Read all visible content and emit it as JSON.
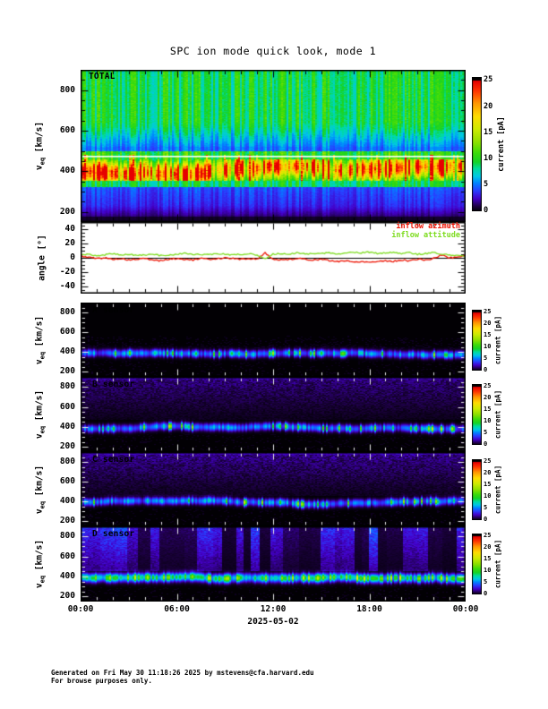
{
  "title": "SPC ion mode quick look, mode 1",
  "footer": {
    "line1": "Generated on Fri May 30 11:18:26 2025 by mstevens@cfa.harvard.edu",
    "line2": "For browse purposes only."
  },
  "x_axis": {
    "tick_labels": [
      "00:00",
      "06:00",
      "12:00",
      "18:00",
      "00:00"
    ],
    "date_label": "2025-05-02"
  },
  "ylabels": {
    "velocity_v": "v",
    "velocity_sub": "eq",
    "velocity_unit": "[km/s]",
    "angle": "angle [°]"
  },
  "colorbar": {
    "label": "current [pA]",
    "ticks": [
      0,
      5,
      10,
      15,
      20,
      25
    ],
    "max_pA": 25
  },
  "panels": {
    "total": {
      "label": "TOTAL",
      "yticks": [
        200,
        400,
        600,
        800
      ]
    },
    "angle": {
      "yticks": [
        -40,
        -20,
        0,
        20,
        40
      ],
      "legend": [
        {
          "label": "inflow azimuth",
          "color": "#ee1100"
        },
        {
          "label": "inflow attitude",
          "color": "#7ddc1e"
        }
      ]
    },
    "sensors": [
      {
        "label": "A sensor",
        "yticks": [
          200,
          400,
          600,
          800
        ]
      },
      {
        "label": "B sensor",
        "yticks": [
          200,
          400,
          600,
          800
        ]
      },
      {
        "label": "C sensor",
        "yticks": [
          200,
          400,
          600,
          800
        ]
      },
      {
        "label": "D sensor",
        "yticks": [
          200,
          400,
          600,
          800
        ]
      }
    ]
  },
  "chart_data": {
    "type": "heatmap",
    "title": "SPC ion mode quick look, mode 1",
    "time_range_hours": [
      0,
      24
    ],
    "x_major_tick_hours": [
      0,
      6,
      12,
      18,
      24
    ],
    "date": "2025-05-02",
    "velocity_axis": {
      "range_km_s": [
        150,
        900
      ],
      "ticks": [
        200,
        400,
        600,
        800
      ],
      "minor_step": 50
    },
    "current_axis": {
      "range_pA": [
        0,
        25
      ],
      "ticks": [
        0,
        5,
        10,
        15,
        20,
        25
      ]
    },
    "colormap_stops": [
      [
        0.0,
        "#000000"
      ],
      [
        0.04,
        "#1c0040"
      ],
      [
        0.1,
        "#4400c8"
      ],
      [
        0.16,
        "#2a3cff"
      ],
      [
        0.22,
        "#0084ff"
      ],
      [
        0.27,
        "#00c8e6"
      ],
      [
        0.33,
        "#00dc9b"
      ],
      [
        0.38,
        "#14d228"
      ],
      [
        0.45,
        "#3cdc0a"
      ],
      [
        0.53,
        "#8ce000"
      ],
      [
        0.63,
        "#cdeb00"
      ],
      [
        0.73,
        "#ffdc00"
      ],
      [
        0.83,
        "#ff9600"
      ],
      [
        0.92,
        "#ff3700"
      ],
      [
        1.0,
        "#e60000"
      ]
    ],
    "angle_panel": {
      "ylim": [
        -50,
        50
      ],
      "yticks": [
        -40,
        -20,
        0,
        20,
        40
      ],
      "minor_step_deg": 5,
      "zero_line": true,
      "sample_step_minutes": 30,
      "noise_amplitude_deg": 1.0,
      "series": [
        {
          "name": "inflow azimuth",
          "color": "#ee1100",
          "values": [
            2,
            1,
            -1,
            0,
            -2,
            -1,
            -3,
            -2,
            -1,
            -3,
            -4,
            -2,
            -1,
            -2,
            -3,
            -1,
            -2,
            -1,
            0,
            -1,
            -2,
            -1,
            -2,
            7,
            -2,
            -3,
            -2,
            -1,
            -2,
            -3,
            -2,
            -4,
            -5,
            -4,
            -6,
            -5,
            -6,
            -5,
            -4,
            -5,
            -3,
            -4,
            -2,
            -3,
            -1,
            4,
            0,
            1,
            3
          ]
        },
        {
          "name": "inflow attitude",
          "color": "#7ddc1e",
          "values": [
            4,
            5,
            3,
            4,
            6,
            4,
            5,
            3,
            4,
            5,
            3,
            4,
            5,
            6,
            4,
            5,
            4,
            6,
            5,
            4,
            5,
            6,
            4,
            -2,
            5,
            6,
            5,
            7,
            6,
            5,
            6,
            7,
            5,
            6,
            8,
            7,
            8,
            6,
            7,
            8,
            6,
            7,
            5,
            6,
            7,
            5,
            4,
            3,
            2
          ]
        }
      ]
    },
    "spectrogram_panels": [
      {
        "id": "TOTAL",
        "seed": 7,
        "background_profile_pA": [
          [
            900,
            9.2
          ],
          [
            640,
            9.2
          ],
          [
            520,
            5.2
          ],
          [
            497,
            4.9
          ]
        ],
        "green_band": {
          "v_range": [
            458,
            497
          ],
          "intensity_pA": 10.2
        },
        "peak_band": {
          "center_km_s": 400,
          "center_wander_km_s": 25,
          "halfwidth_km_s": 40,
          "intensity_pA": [
            13,
            25
          ],
          "spike_fraction": 0.07
        },
        "sub_band_green": {
          "v_range": [
            324,
            352
          ],
          "intensity_pA": 8.8
        },
        "low_profile_pA": [
          [
            324,
            4.3
          ],
          [
            230,
            3.3
          ],
          [
            178,
            1.5
          ],
          [
            150,
            0.6
          ]
        ],
        "white_line_km_s": 470
      },
      {
        "id": "A",
        "seed": 11,
        "haze": "none",
        "band": {
          "center_km_s": 388,
          "wander_km_s": 22,
          "halfwidth_km_s": 26,
          "intensity_pA": [
            3,
            7
          ],
          "bright_fraction": 0.1,
          "bright_pA": [
            9,
            13.5
          ]
        }
      },
      {
        "id": "B",
        "seed": 23,
        "haze": "purple",
        "haze_vmin_km_s": 470,
        "haze_top_pA": 1.7,
        "band": {
          "center_km_s": 390,
          "wander_km_s": 22,
          "halfwidth_km_s": 26,
          "intensity_pA": [
            3,
            7
          ],
          "bright_fraction": 0.12,
          "bright_pA": [
            9,
            13.5
          ]
        }
      },
      {
        "id": "C",
        "seed": 37,
        "haze": "purple",
        "haze_vmin_km_s": 460,
        "haze_top_pA": 1.9,
        "band": {
          "center_km_s": 394,
          "wander_km_s": 22,
          "halfwidth_km_s": 26,
          "intensity_pA": [
            3,
            7
          ],
          "bright_fraction": 0.12,
          "bright_pA": [
            9,
            13.5
          ]
        }
      },
      {
        "id": "D",
        "seed": 51,
        "haze": "streaks",
        "haze_vmin_km_s": 450,
        "streak_pA": {
          "low": [
            0.7,
            1.3
          ],
          "high": [
            2.4,
            4.0
          ]
        },
        "band": {
          "center_km_s": 398,
          "wander_km_s": 20,
          "halfwidth_km_s": 30,
          "intensity_pA": [
            6,
            10
          ],
          "bright_fraction": 0.3,
          "bright_pA": [
            11,
            15
          ]
        }
      }
    ]
  }
}
